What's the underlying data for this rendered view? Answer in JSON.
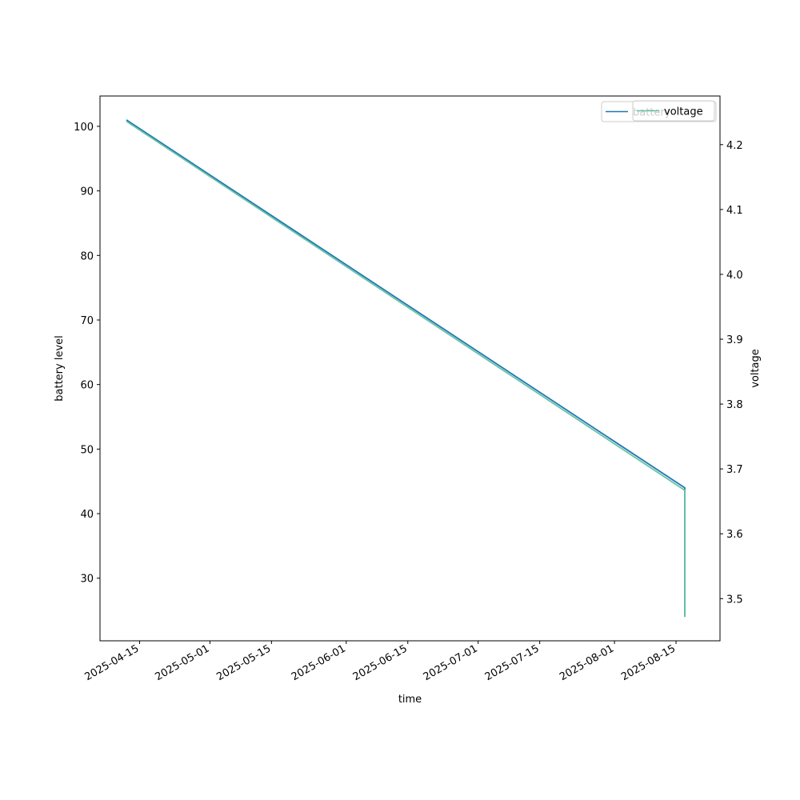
{
  "chart_data": {
    "type": "line",
    "xlabel": "time",
    "ylabel_left": "battery level",
    "ylabel_right": "voltage",
    "xlim": [
      "2025-04-06",
      "2025-08-25"
    ],
    "ylim_left": [
      20.3,
      104.7
    ],
    "ylim_right": [
      3.435,
      4.275
    ],
    "x_ticks": [
      "2025-04-15",
      "2025-05-01",
      "2025-05-15",
      "2025-06-01",
      "2025-06-15",
      "2025-07-01",
      "2025-07-15",
      "2025-08-01",
      "2025-08-15"
    ],
    "y_ticks_left": [
      30,
      40,
      50,
      60,
      70,
      80,
      90,
      100
    ],
    "y_ticks_right": [
      3.5,
      3.6,
      3.7,
      3.8,
      3.9,
      4.0,
      4.1,
      4.2
    ],
    "legend_position": "top-right",
    "series": [
      {
        "name": "battery",
        "axis": "left",
        "color": "#1f77b4",
        "x": [
          "2025-04-12",
          "2025-08-17",
          "2025-08-17"
        ],
        "values": [
          101,
          44,
          24
        ]
      },
      {
        "name": "voltage",
        "axis": "right",
        "color": "#66c2a5",
        "x": [
          "2025-04-12",
          "2025-08-17",
          "2025-08-17"
        ],
        "values": [
          4.236,
          3.667,
          3.472
        ]
      }
    ]
  }
}
